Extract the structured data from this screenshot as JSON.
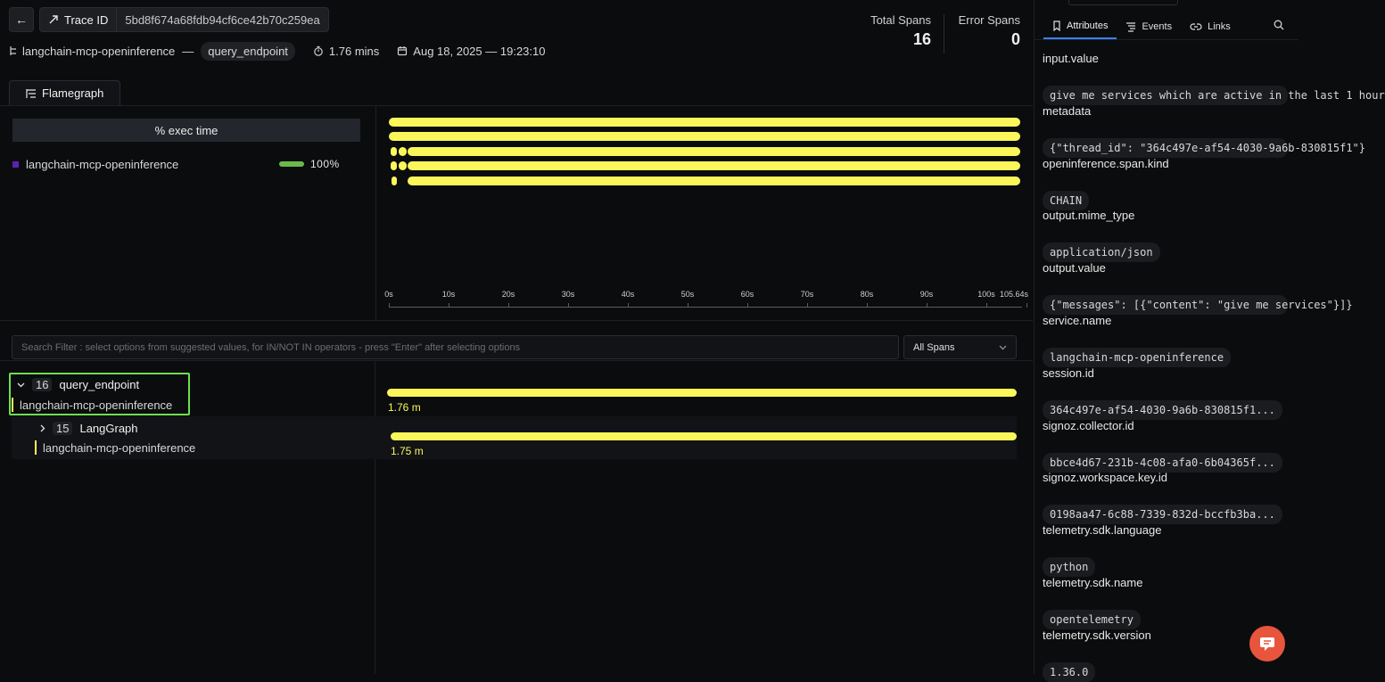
{
  "header": {
    "back_icon": "arrow-left-icon",
    "trace_label": "Trace ID",
    "trace_id": "5bd8f674a68fdb94cf6ce42b70c259ea",
    "service_name": "langchain-mcp-openinference",
    "separator": "—",
    "endpoint": "query_endpoint",
    "duration": "1.76 mins",
    "timestamp": "Aug 18, 2025 — 19:23:10",
    "total_spans_label": "Total Spans",
    "total_spans": "16",
    "error_spans_label": "Error Spans",
    "error_spans": "0"
  },
  "tabs": {
    "flamegraph": "Flamegraph"
  },
  "exec": {
    "header": "% exec time",
    "service": "langchain-mcp-openinference",
    "percent": "100%",
    "percent_value": 100
  },
  "flamegraph_axis": {
    "ticks": [
      "0s",
      "10s",
      "20s",
      "30s",
      "40s",
      "50s",
      "60s",
      "70s",
      "80s",
      "90s",
      "100s",
      "105.64s"
    ]
  },
  "filter": {
    "placeholder": "Search Filter : select options from suggested values, for IN/NOT IN operators - press \"Enter\" after selecting options",
    "scope": "All Spans"
  },
  "spans": [
    {
      "count": "16",
      "name": "query_endpoint",
      "service": "langchain-mcp-openinference",
      "duration": "1.76 m",
      "expanded": true
    },
    {
      "count": "15",
      "name": "LangGraph",
      "service": "langchain-mcp-openinference",
      "duration": "1.75 m",
      "expanded": false
    }
  ],
  "sidebar": {
    "tabs": [
      "Attributes",
      "Events",
      "Links"
    ],
    "active_tab": "Attributes",
    "attributes": [
      {
        "key": "input.value",
        "value": "give me services which are active in the last 1 hour"
      },
      {
        "key": "metadata",
        "value": "{\"thread_id\": \"364c497e-af54-4030-9a6b-830815f1\"}"
      },
      {
        "key": "openinference.span.kind",
        "value": "CHAIN"
      },
      {
        "key": "output.mime_type",
        "value": "application/json"
      },
      {
        "key": "output.value",
        "value": "{\"messages\": [{\"content\": \"give me services\"}]}"
      },
      {
        "key": "service.name",
        "value": "langchain-mcp-openinference"
      },
      {
        "key": "session.id",
        "value": "364c497e-af54-4030-9a6b-830815f1..."
      },
      {
        "key": "signoz.collector.id",
        "value": "bbce4d67-231b-4c08-afa0-6b04365f..."
      },
      {
        "key": "signoz.workspace.key.id",
        "value": "0198aa47-6c88-7339-832d-bccfb3ba..."
      },
      {
        "key": "telemetry.sdk.language",
        "value": "python"
      },
      {
        "key": "telemetry.sdk.name",
        "value": "opentelemetry"
      },
      {
        "key": "telemetry.sdk.version",
        "value": "1.36.0"
      }
    ]
  },
  "colors": {
    "span_bar": "#fbf75a",
    "selected_outline": "#6ee04d",
    "exec_bar": "#6cb84a",
    "chat_button": "#e8553d",
    "active_tab": "#3b82f6"
  }
}
